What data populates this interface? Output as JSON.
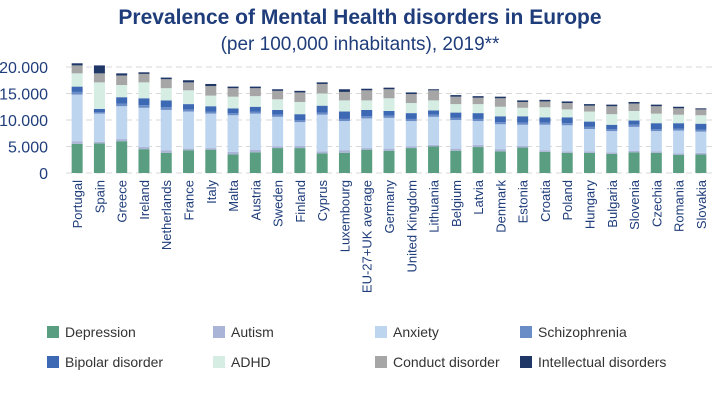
{
  "chart_data": {
    "type": "bar",
    "stacked": true,
    "title": "Prevalence of Mental Health disorders in Europe",
    "subtitle": "(per 100,000 inhabitants), 2019**",
    "xlabel": "",
    "ylabel": "",
    "ylim": [
      0,
      20000
    ],
    "yticks": [
      "0",
      "5.000",
      "10.000",
      "15.000",
      "20.000"
    ],
    "grid": true,
    "legend_position": "bottom",
    "categories": [
      "Portugal",
      "Spain",
      "Greece",
      "Ireland",
      "Netherlands",
      "France",
      "Italy",
      "Malta",
      "Austria",
      "Sweden",
      "Finland",
      "Cyprus",
      "Luxembourg",
      "EU-27+UK average",
      "Germany",
      "United Kingdom",
      "Lithuania",
      "Belgium",
      "Latvia",
      "Denmark",
      "Estonia",
      "Croatia",
      "Poland",
      "Hungary",
      "Bulgaria",
      "Slovenia",
      "Czechia",
      "Romania",
      "Slovakia"
    ],
    "series": [
      {
        "name": "Depression",
        "color": "#5a9e82",
        "values": [
          5500,
          5600,
          6000,
          4500,
          3800,
          4300,
          4400,
          3500,
          3900,
          4700,
          4700,
          3700,
          3800,
          4400,
          4200,
          4700,
          5000,
          4200,
          4900,
          4100,
          4800,
          4000,
          3800,
          3800,
          3600,
          3900,
          3800,
          3400,
          3500
        ]
      },
      {
        "name": "Autism",
        "color": "#a9b4d6",
        "values": [
          500,
          300,
          400,
          400,
          500,
          300,
          300,
          500,
          500,
          300,
          400,
          400,
          500,
          300,
          400,
          300,
          300,
          400,
          400,
          400,
          300,
          300,
          300,
          300,
          300,
          300,
          300,
          300,
          300
        ]
      },
      {
        "name": "Anxiety",
        "color": "#bed5ef",
        "values": [
          8800,
          5300,
          6200,
          7400,
          7600,
          7000,
          6500,
          6900,
          6800,
          5600,
          4500,
          6900,
          5500,
          5600,
          5800,
          4800,
          5300,
          5400,
          4500,
          4700,
          4000,
          4800,
          4900,
          4200,
          4000,
          4500,
          3800,
          4300,
          4000
        ]
      },
      {
        "name": "Schizophrenia",
        "color": "#6a8cc7",
        "values": [
          500,
          300,
          500,
          500,
          500,
          400,
          400,
          400,
          400,
          400,
          400,
          400,
          400,
          400,
          400,
          400,
          400,
          400,
          400,
          400,
          400,
          400,
          400,
          400,
          400,
          400,
          400,
          400,
          400
        ]
      },
      {
        "name": "Bipolar disorder",
        "color": "#3d68b3",
        "values": [
          1000,
          600,
          1200,
          1300,
          1300,
          1000,
          1000,
          900,
          900,
          900,
          1100,
          1300,
          1400,
          1200,
          900,
          1100,
          800,
          1000,
          1100,
          1100,
          1200,
          1000,
          1100,
          1000,
          800,
          800,
          1100,
          1000,
          1100
        ]
      },
      {
        "name": "ADHD",
        "color": "#d5ede3",
        "values": [
          2500,
          5000,
          2300,
          3000,
          2300,
          2600,
          2000,
          2200,
          2000,
          2000,
          2300,
          2300,
          2100,
          1800,
          2400,
          1900,
          1900,
          1600,
          1700,
          1800,
          1600,
          1900,
          1500,
          1900,
          2000,
          1800,
          1800,
          1600,
          1600
        ]
      },
      {
        "name": "Conduct disorder",
        "color": "#a6a6a6",
        "values": [
          1500,
          1700,
          1800,
          1600,
          1700,
          1500,
          1800,
          1600,
          1500,
          1600,
          1800,
          1800,
          1600,
          1900,
          1700,
          1700,
          1900,
          1400,
          1200,
          1600,
          1100,
          1100,
          1200,
          1100,
          1500,
          1400,
          1400,
          1200,
          1100
        ]
      },
      {
        "name": "Intellectual disorders",
        "color": "#1f3767",
        "values": [
          400,
          1500,
          400,
          300,
          300,
          400,
          400,
          300,
          300,
          300,
          300,
          300,
          500,
          300,
          300,
          300,
          200,
          300,
          300,
          300,
          300,
          300,
          300,
          300,
          300,
          300,
          300,
          300,
          200
        ]
      }
    ]
  }
}
